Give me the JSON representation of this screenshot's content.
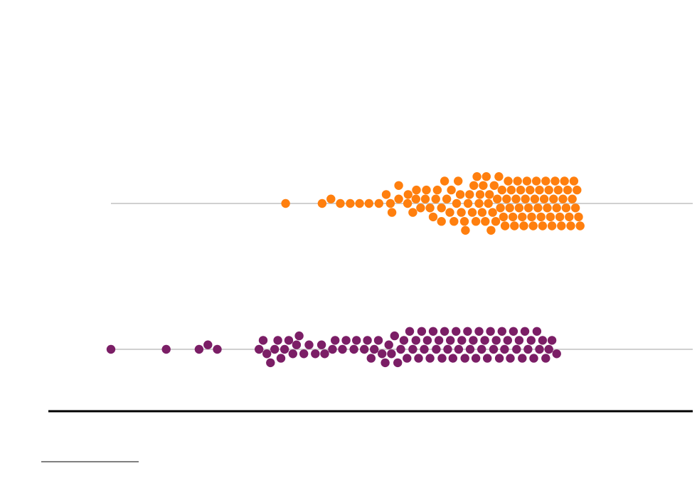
{
  "chart_data": {
    "type": "scatter",
    "subtype": "beeswarm",
    "title": "",
    "xlabel": "",
    "ylabel": "",
    "xlim": [
      0,
      100
    ],
    "grid": false,
    "legend": "none",
    "series": [
      {
        "color": "#ff7f0e",
        "values": [
          33.5,
          40.5,
          42.2,
          44.0,
          45.9,
          47.7,
          49.5,
          51.4,
          52.8,
          53.9,
          53.6,
          55.2,
          55.2,
          57.0,
          56.9,
          57.9,
          58.6,
          58.5,
          59.4,
          60.3,
          60.5,
          61.2,
          61.8,
          62.3,
          62.6,
          63.4,
          63.4,
          64.0,
          64.4,
          65.0,
          65.3,
          65.8,
          66.3,
          66.6,
          67.0,
          67.2,
          67.8,
          68.0,
          68.5,
          68.8,
          69.3,
          69.6,
          70.0,
          70.2,
          70.6,
          70.8,
          71.2,
          71.4,
          71.8,
          72.0,
          72.4,
          72.6,
          72.9,
          73.2,
          73.5,
          73.8,
          74.1,
          74.4,
          74.7,
          75.0,
          75.3,
          75.6,
          75.9,
          76.2,
          76.5,
          76.8,
          77.1,
          77.4,
          77.7,
          78.0,
          78.3,
          78.6,
          78.9,
          79.2,
          79.5,
          79.8,
          80.1,
          80.4,
          80.7,
          81.0,
          81.3,
          81.6,
          81.9,
          82.2,
          82.5,
          82.8,
          83.1,
          83.4,
          83.7,
          84.0,
          84.3,
          84.6,
          84.9,
          85.2,
          85.5,
          85.8,
          86.1,
          86.4,
          86.7,
          87.0,
          87.3,
          87.6,
          87.9,
          88.2,
          88.5,
          88.8,
          89.1,
          89.4,
          89.7,
          90.0
        ]
      },
      {
        "color": "#7b1e66",
        "values": [
          0.0,
          10.6,
          16.9,
          18.6,
          20.4,
          28.4,
          29.2,
          29.9,
          30.6,
          31.4,
          32.0,
          32.6,
          33.3,
          34.1,
          34.9,
          35.6,
          36.1,
          37.0,
          38.0,
          39.2,
          40.4,
          41.0,
          42.5,
          43.0,
          44.4,
          45.1,
          46.6,
          47.1,
          48.6,
          49.2,
          49.9,
          50.5,
          51.3,
          52.0,
          52.6,
          53.3,
          53.8,
          54.4,
          55.0,
          55.6,
          56.2,
          56.8,
          57.3,
          57.9,
          58.5,
          59.0,
          59.6,
          60.1,
          60.7,
          61.2,
          61.8,
          62.4,
          62.9,
          63.5,
          64.0,
          64.6,
          65.1,
          65.6,
          66.2,
          66.7,
          67.3,
          67.9,
          68.4,
          68.9,
          69.5,
          70.0,
          70.6,
          71.1,
          71.7,
          72.2,
          72.8,
          73.4,
          73.9,
          74.5,
          75.0,
          75.5,
          76.1,
          76.6,
          77.2,
          77.8,
          78.3,
          78.9,
          79.4,
          80.0,
          80.6,
          81.1,
          81.7,
          82.2,
          82.8,
          83.4,
          84.0,
          84.6,
          85.5
        ]
      }
    ]
  }
}
